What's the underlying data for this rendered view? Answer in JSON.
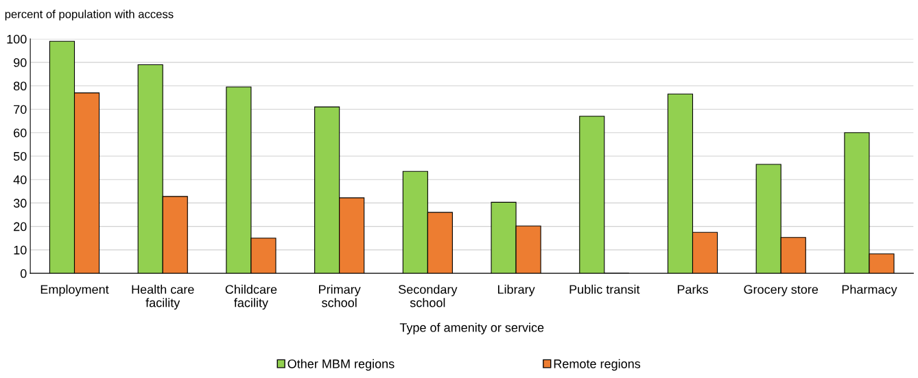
{
  "chart_data": {
    "type": "bar",
    "ylabel": "percent of population with access",
    "xlabel": "Type of amenity or service",
    "categories": [
      "Employment",
      "Health care\nfacility",
      "Childcare\nfacility",
      "Primary\nschool",
      "Secondary\nschool",
      "Library",
      "Public transit",
      "Parks",
      "Grocery store",
      "Pharmacy"
    ],
    "series": [
      {
        "name": "Other MBM regions",
        "color": "#92d050",
        "values": [
          99,
          89,
          79.5,
          71,
          43.5,
          30.3,
          67,
          76.5,
          46.5,
          60
        ]
      },
      {
        "name": "Remote regions",
        "color": "#ed7d31",
        "values": [
          77,
          32.8,
          15,
          32.2,
          26,
          20.2,
          null,
          17.5,
          15.3,
          8.3
        ]
      }
    ],
    "ylim": [
      0,
      100
    ],
    "yticks": [
      0,
      10,
      20,
      30,
      40,
      50,
      60,
      70,
      80,
      90,
      100
    ],
    "grid": "y",
    "legend": "bottom"
  }
}
